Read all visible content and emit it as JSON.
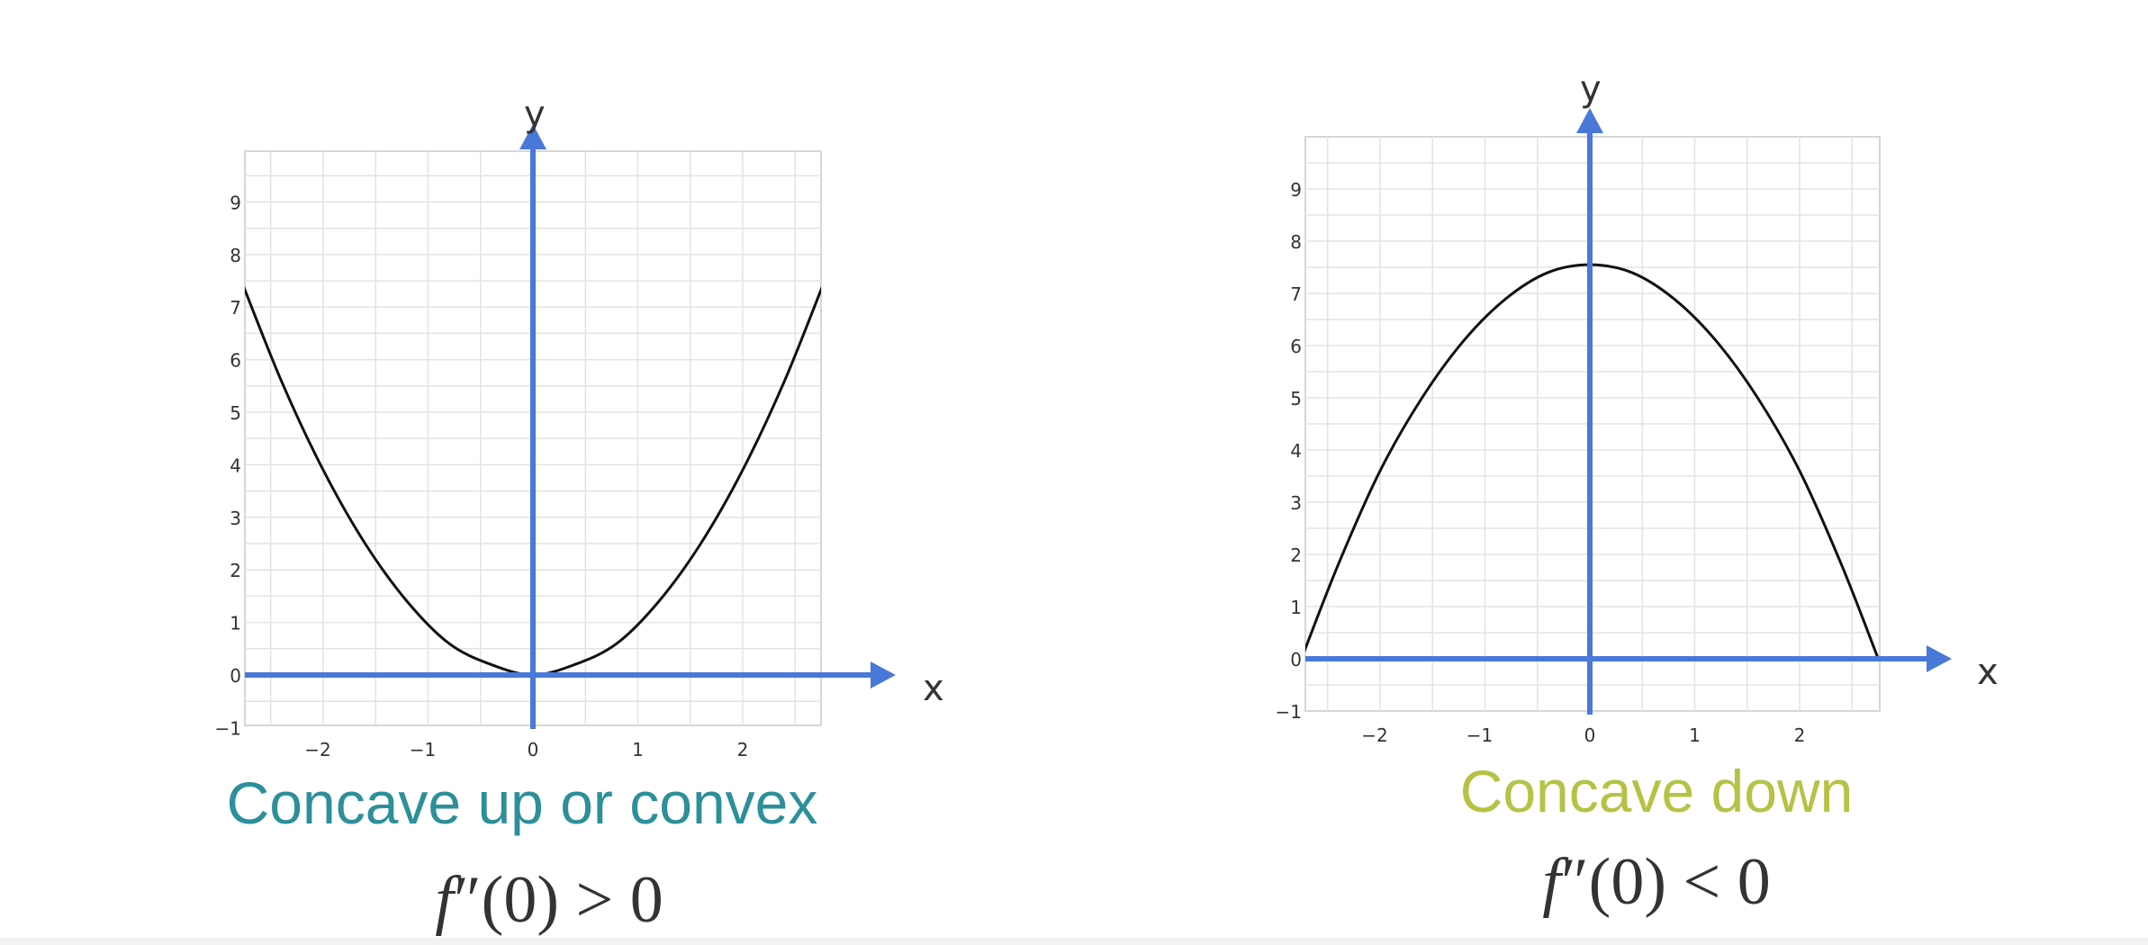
{
  "colors": {
    "axis": "#4a78d9",
    "grid": "#e3e3e3",
    "curve": "#111111",
    "tick_text": "#333333",
    "caption_left": "#2c8f9a",
    "caption_right": "#b6c244"
  },
  "chart_data": [
    {
      "type": "line",
      "title": "",
      "xlabel": "x",
      "ylabel": "y",
      "xlim": [
        -2.8,
        2.8
      ],
      "ylim": [
        -1,
        10
      ],
      "x_ticks": [
        -2,
        -1,
        0,
        1,
        2
      ],
      "y_ticks": [
        -1,
        0,
        1,
        2,
        3,
        4,
        5,
        6,
        7,
        8,
        9
      ],
      "x_tick_labels": [
        "−2",
        "−1",
        "0",
        "1",
        "2"
      ],
      "y_tick_labels": [
        "−1",
        "0",
        "1",
        "2",
        "3",
        "4",
        "5",
        "6",
        "7",
        "8",
        "9"
      ],
      "grid": true,
      "series": [
        {
          "x": [
            -2.8,
            -2.4,
            -2.0,
            -1.6,
            -1.2,
            -0.8,
            -0.4,
            0.0,
            0.4,
            0.8,
            1.2,
            1.6,
            2.0,
            2.4,
            2.8
          ],
          "y": [
            7.6,
            5.6,
            3.9,
            2.5,
            1.4,
            0.6,
            0.2,
            0.0,
            0.2,
            0.6,
            1.4,
            2.5,
            3.9,
            5.6,
            7.6
          ]
        }
      ]
    },
    {
      "type": "line",
      "title": "",
      "xlabel": "x",
      "ylabel": "y",
      "xlim": [
        -2.7,
        2.7
      ],
      "ylim": [
        -1,
        10
      ],
      "x_ticks": [
        -2,
        -1,
        0,
        1,
        2
      ],
      "y_ticks": [
        -1,
        0,
        1,
        2,
        3,
        4,
        5,
        6,
        7,
        8,
        9
      ],
      "x_tick_labels": [
        "−2",
        "−1",
        "0",
        "1",
        "2"
      ],
      "y_tick_labels": [
        "−1",
        "0",
        "1",
        "2",
        "3",
        "4",
        "5",
        "6",
        "7",
        "8",
        "9"
      ],
      "grid": true,
      "series": [
        {
          "x": [
            -2.75,
            -2.4,
            -2.0,
            -1.6,
            -1.2,
            -0.8,
            -0.4,
            0.0,
            0.4,
            0.8,
            1.2,
            1.6,
            2.0,
            2.4,
            2.75
          ],
          "y": [
            0.0,
            1.8,
            3.6,
            5.0,
            6.1,
            6.9,
            7.4,
            7.55,
            7.4,
            6.9,
            6.1,
            5.0,
            3.6,
            1.8,
            0.0
          ]
        }
      ]
    }
  ],
  "captions": {
    "left": "Concave up or convex",
    "right": "Concave down"
  },
  "formulas": {
    "left": {
      "fn": "f",
      "prime": "″",
      "arg": "(0)",
      "rel": " > 0"
    },
    "right": {
      "fn": "f",
      "prime": "″",
      "arg": "(0)",
      "rel": " < 0"
    }
  }
}
